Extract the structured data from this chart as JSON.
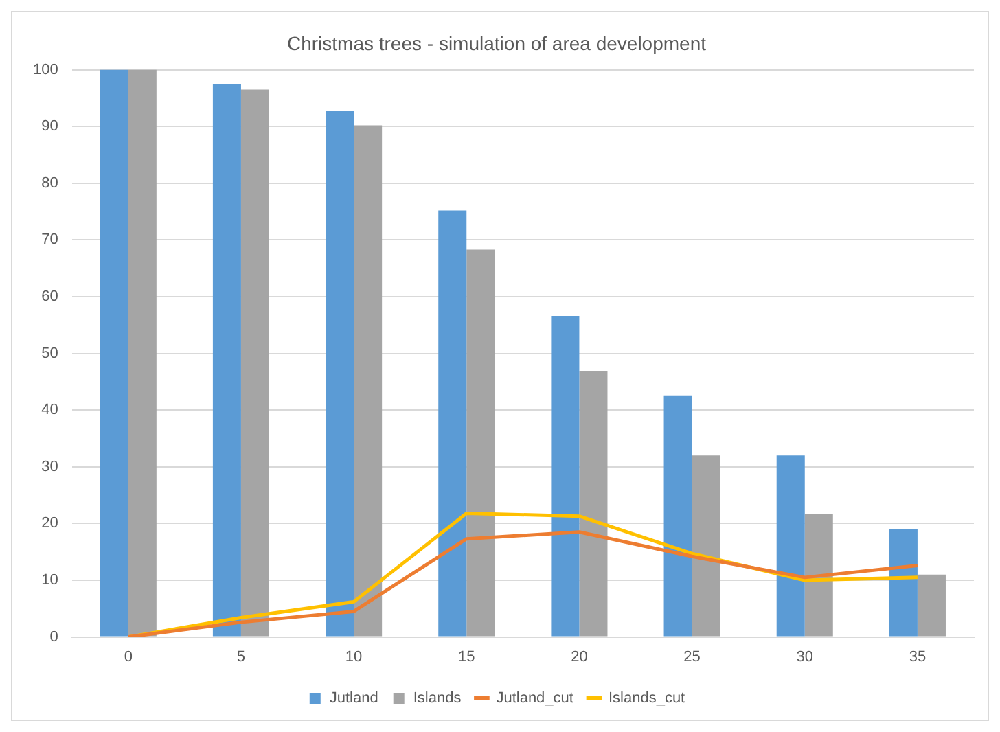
{
  "chart_data": {
    "type": "bar",
    "title": "Christmas trees - simulation of area development",
    "categories": [
      "0",
      "5",
      "10",
      "15",
      "20",
      "25",
      "30",
      "35"
    ],
    "series": [
      {
        "name": "Jutland",
        "color": "#5b9bd5",
        "values": [
          100,
          97.4,
          92.8,
          75.2,
          56.6,
          42.6,
          32,
          19
        ]
      },
      {
        "name": "Islands",
        "color": "#a5a5a5",
        "values": [
          100,
          96.5,
          90.2,
          68.3,
          46.8,
          32,
          21.7,
          11
        ]
      },
      {
        "name": "Jutland_cut",
        "type": "line",
        "color": "#ed7d31",
        "values": [
          0,
          2.6,
          4.5,
          17.3,
          18.5,
          14.2,
          10.5,
          12.6
        ]
      },
      {
        "name": "Islands_cut",
        "type": "line",
        "color": "#ffc000",
        "values": [
          0,
          3.4,
          6.2,
          21.8,
          21.3,
          14.7,
          10,
          10.5
        ]
      }
    ],
    "ylim": [
      0,
      100
    ],
    "yticks": [
      0,
      10,
      20,
      30,
      40,
      50,
      60,
      70,
      80,
      90,
      100
    ],
    "grid": "y",
    "legend": "bottom",
    "marker": "none"
  }
}
